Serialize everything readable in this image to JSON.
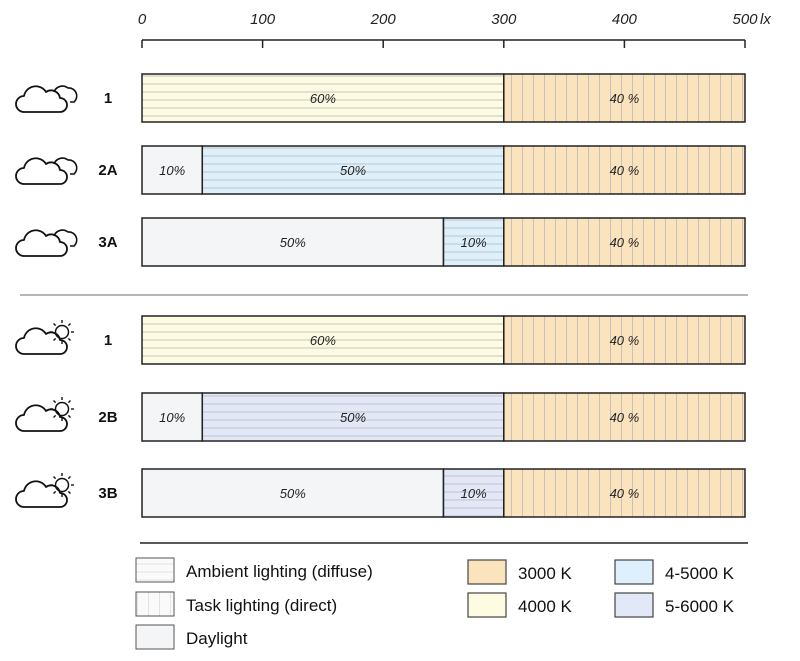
{
  "chart_data": {
    "type": "bar",
    "orientation": "horizontal-stacked",
    "unit": "lx",
    "xlim": [
      0,
      500
    ],
    "ticks": [
      0,
      100,
      200,
      300,
      400,
      500
    ],
    "grid": false,
    "colors": {
      "3000K": "#fbe3be",
      "4000K": "#fefbe3",
      "4-5000K": "#ddf0fb",
      "5-6000K": "#e2e8f8",
      "daylight": "#f4f5f6"
    },
    "groups": [
      {
        "weather_icon": "cloud-icon",
        "rows": [
          {
            "label": "1",
            "segments": [
              {
                "start": 0,
                "end": 300,
                "label": "60%",
                "pattern": "ambient",
                "color": "4000K"
              },
              {
                "start": 300,
                "end": 500,
                "label": "40 %",
                "pattern": "task",
                "color": "3000K"
              }
            ]
          },
          {
            "label": "2A",
            "segments": [
              {
                "start": 0,
                "end": 50,
                "label": "10%",
                "pattern": "daylight",
                "color": "daylight"
              },
              {
                "start": 50,
                "end": 300,
                "label": "50%",
                "pattern": "ambient",
                "color": "4-5000K"
              },
              {
                "start": 300,
                "end": 500,
                "label": "40 %",
                "pattern": "task",
                "color": "3000K"
              }
            ]
          },
          {
            "label": "3A",
            "segments": [
              {
                "start": 0,
                "end": 250,
                "label": "50%",
                "pattern": "daylight",
                "color": "daylight"
              },
              {
                "start": 250,
                "end": 300,
                "label": "10%",
                "pattern": "ambient",
                "color": "4-5000K"
              },
              {
                "start": 300,
                "end": 500,
                "label": "40 %",
                "pattern": "task",
                "color": "3000K"
              }
            ]
          }
        ]
      },
      {
        "weather_icon": "sun-cloud-icon",
        "rows": [
          {
            "label": "1",
            "segments": [
              {
                "start": 0,
                "end": 300,
                "label": "60%",
                "pattern": "ambient",
                "color": "4000K"
              },
              {
                "start": 300,
                "end": 500,
                "label": "40 %",
                "pattern": "task",
                "color": "3000K"
              }
            ]
          },
          {
            "label": "2B",
            "segments": [
              {
                "start": 0,
                "end": 50,
                "label": "10%",
                "pattern": "daylight",
                "color": "daylight"
              },
              {
                "start": 50,
                "end": 300,
                "label": "50%",
                "pattern": "ambient",
                "color": "5-6000K"
              },
              {
                "start": 300,
                "end": 500,
                "label": "40 %",
                "pattern": "task",
                "color": "3000K"
              }
            ]
          },
          {
            "label": "3B",
            "segments": [
              {
                "start": 0,
                "end": 250,
                "label": "50%",
                "pattern": "daylight",
                "color": "daylight"
              },
              {
                "start": 250,
                "end": 300,
                "label": "10%",
                "pattern": "ambient",
                "color": "5-6000K"
              },
              {
                "start": 300,
                "end": 500,
                "label": "40 %",
                "pattern": "task",
                "color": "3000K"
              }
            ]
          }
        ]
      }
    ],
    "legend": {
      "patterns": [
        {
          "key": "ambient",
          "label": "Ambient lighting (diffuse)"
        },
        {
          "key": "task",
          "label": "Task lighting (direct)"
        },
        {
          "key": "daylight",
          "label": "Daylight"
        }
      ],
      "colors": [
        {
          "key": "3000K",
          "label": "3000 K"
        },
        {
          "key": "4000K",
          "label": "4000 K"
        },
        {
          "key": "4-5000K",
          "label": "4-5000 K"
        },
        {
          "key": "5-6000K",
          "label": "5-6000 K"
        }
      ]
    }
  }
}
